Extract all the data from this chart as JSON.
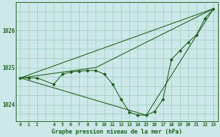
{
  "title": "Graphe pression niveau de la mer (hPa)",
  "bg_color": "#cce8e8",
  "grid_color": "#99ccbb",
  "line_color": "#1e5e1e",
  "marker_color": "#1e5e1e",
  "xlim": [
    -0.5,
    23.5
  ],
  "ylim": [
    1023.55,
    1026.75
  ],
  "yticks": [
    1024,
    1025,
    1026
  ],
  "xticks": [
    0,
    1,
    2,
    4,
    5,
    6,
    7,
    8,
    9,
    10,
    11,
    12,
    13,
    14,
    15,
    16,
    17,
    18,
    19,
    20,
    21,
    22,
    23
  ],
  "series1_x": [
    0,
    1,
    2,
    4,
    5,
    6,
    7,
    8,
    9,
    10,
    11,
    12,
    13,
    14,
    15,
    16,
    17,
    18,
    19,
    20,
    21,
    22,
    23
  ],
  "series1_y": [
    1024.72,
    1024.72,
    1024.72,
    1024.55,
    1024.82,
    1024.88,
    1024.9,
    1024.92,
    1024.92,
    1024.82,
    1024.55,
    1024.15,
    1023.8,
    1023.72,
    1023.72,
    1023.82,
    1024.15,
    1025.22,
    1025.45,
    1025.68,
    1025.88,
    1026.32,
    1026.58
  ],
  "line1_x": [
    0,
    9,
    23
  ],
  "line1_y": [
    1024.72,
    1025.0,
    1026.58
  ],
  "line2_x": [
    0,
    15,
    23
  ],
  "line2_y": [
    1024.72,
    1023.72,
    1026.58
  ],
  "line3_x": [
    0,
    23
  ],
  "line3_y": [
    1024.72,
    1026.58
  ]
}
